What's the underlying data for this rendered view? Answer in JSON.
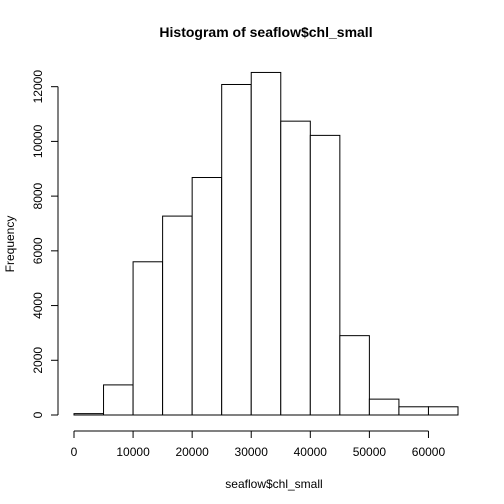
{
  "chart_data": {
    "type": "bar",
    "title": "Histogram of seaflow$chl_small",
    "xlabel": "seaflow$chl_small",
    "ylabel": "Frequency",
    "bin_edges": [
      0,
      5000,
      10000,
      15000,
      20000,
      25000,
      30000,
      35000,
      40000,
      45000,
      50000,
      55000,
      60000,
      65000
    ],
    "values": [
      50,
      1100,
      5600,
      7270,
      8680,
      12080,
      12520,
      10740,
      10220,
      2900,
      580,
      300,
      300
    ],
    "xlim": [
      0,
      65000
    ],
    "ylim": [
      0,
      12500
    ],
    "xticks": [
      "0",
      "10000",
      "20000",
      "30000",
      "40000",
      "50000",
      "60000"
    ],
    "yticks": [
      "0",
      "2000",
      "4000",
      "6000",
      "8000",
      "10000",
      "12000"
    ],
    "grid": false,
    "legend": "none"
  }
}
